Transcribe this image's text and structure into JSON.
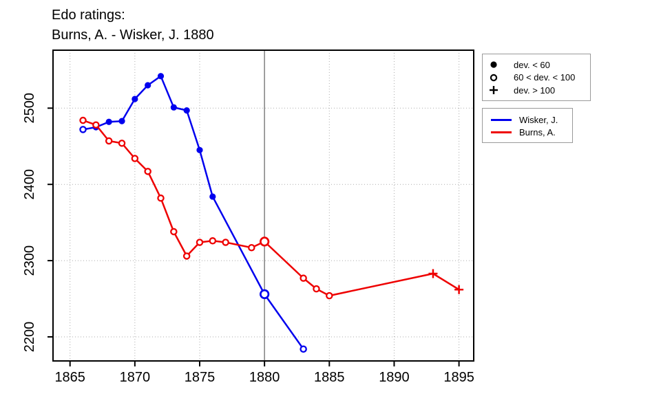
{
  "title": {
    "line1": "Edo ratings:",
    "line2": "Burns, A. - Wisker, J. 1880"
  },
  "colors": {
    "wisker": "#0000ee",
    "burns": "#ee0000",
    "reference_line": "#808080",
    "grid": "#aaaaaa",
    "axis": "#000000",
    "legend_border": "#999999"
  },
  "legend_markers": {
    "items": [
      {
        "icon": "filled-circle",
        "label": "dev. < 60"
      },
      {
        "icon": "open-circle",
        "label": "60 < dev. < 100"
      },
      {
        "icon": "plus",
        "label": "dev. > 100"
      }
    ]
  },
  "legend_series": {
    "items": [
      {
        "label": "Wisker, J.",
        "color": "#0000ee"
      },
      {
        "label": "Burns, A.",
        "color": "#ee0000"
      }
    ]
  },
  "chart_data": {
    "type": "line",
    "title": "Edo ratings: Burns, A. - Wisker, J. 1880",
    "xlabel": "",
    "ylabel": "",
    "x_ticks": [
      "1865",
      "1870",
      "1875",
      "1880",
      "1885",
      "1890",
      "1895"
    ],
    "y_ticks": [
      "2200",
      "2300",
      "2400",
      "2500"
    ],
    "xlim": [
      1863.7,
      1896.3
    ],
    "ylim": [
      2168,
      2576
    ],
    "grid": "dotted",
    "legend_position": "right-outside",
    "reference_year": 1880,
    "marker_meaning": {
      "filled": "dev. < 60",
      "open": "60 < dev. < 100",
      "plus": "dev. > 100"
    },
    "series": [
      {
        "name": "Wisker, J.",
        "color": "#0000ee",
        "points": [
          {
            "year": 1866,
            "rating": 2472,
            "marker": "open"
          },
          {
            "year": 1867,
            "rating": 2475,
            "marker": "filled"
          },
          {
            "year": 1868,
            "rating": 2482,
            "marker": "filled"
          },
          {
            "year": 1869,
            "rating": 2483,
            "marker": "filled"
          },
          {
            "year": 1870,
            "rating": 2512,
            "marker": "filled"
          },
          {
            "year": 1871,
            "rating": 2530,
            "marker": "filled"
          },
          {
            "year": 1872,
            "rating": 2542,
            "marker": "filled"
          },
          {
            "year": 1873,
            "rating": 2501,
            "marker": "filled"
          },
          {
            "year": 1874,
            "rating": 2497,
            "marker": "filled"
          },
          {
            "year": 1875,
            "rating": 2445,
            "marker": "filled"
          },
          {
            "year": 1876,
            "rating": 2384,
            "marker": "filled"
          },
          {
            "year": 1880,
            "rating": 2256,
            "marker": "open"
          },
          {
            "year": 1883,
            "rating": 2184,
            "marker": "open"
          }
        ]
      },
      {
        "name": "Burns, A.",
        "color": "#ee0000",
        "points": [
          {
            "year": 1866,
            "rating": 2484,
            "marker": "open"
          },
          {
            "year": 1867,
            "rating": 2478,
            "marker": "open"
          },
          {
            "year": 1868,
            "rating": 2457,
            "marker": "open"
          },
          {
            "year": 1869,
            "rating": 2454,
            "marker": "open"
          },
          {
            "year": 1870,
            "rating": 2434,
            "marker": "open"
          },
          {
            "year": 1871,
            "rating": 2417,
            "marker": "open"
          },
          {
            "year": 1872,
            "rating": 2382,
            "marker": "open"
          },
          {
            "year": 1873,
            "rating": 2338,
            "marker": "open"
          },
          {
            "year": 1874,
            "rating": 2306,
            "marker": "open"
          },
          {
            "year": 1875,
            "rating": 2324,
            "marker": "open"
          },
          {
            "year": 1876,
            "rating": 2326,
            "marker": "open"
          },
          {
            "year": 1877,
            "rating": 2324,
            "marker": "open"
          },
          {
            "year": 1879,
            "rating": 2317,
            "marker": "open"
          },
          {
            "year": 1880,
            "rating": 2325,
            "marker": "open"
          },
          {
            "year": 1883,
            "rating": 2277,
            "marker": "open"
          },
          {
            "year": 1884,
            "rating": 2263,
            "marker": "open"
          },
          {
            "year": 1885,
            "rating": 2254,
            "marker": "open"
          },
          {
            "year": 1893,
            "rating": 2283,
            "marker": "plus"
          },
          {
            "year": 1895,
            "rating": 2262,
            "marker": "plus"
          }
        ]
      }
    ]
  }
}
